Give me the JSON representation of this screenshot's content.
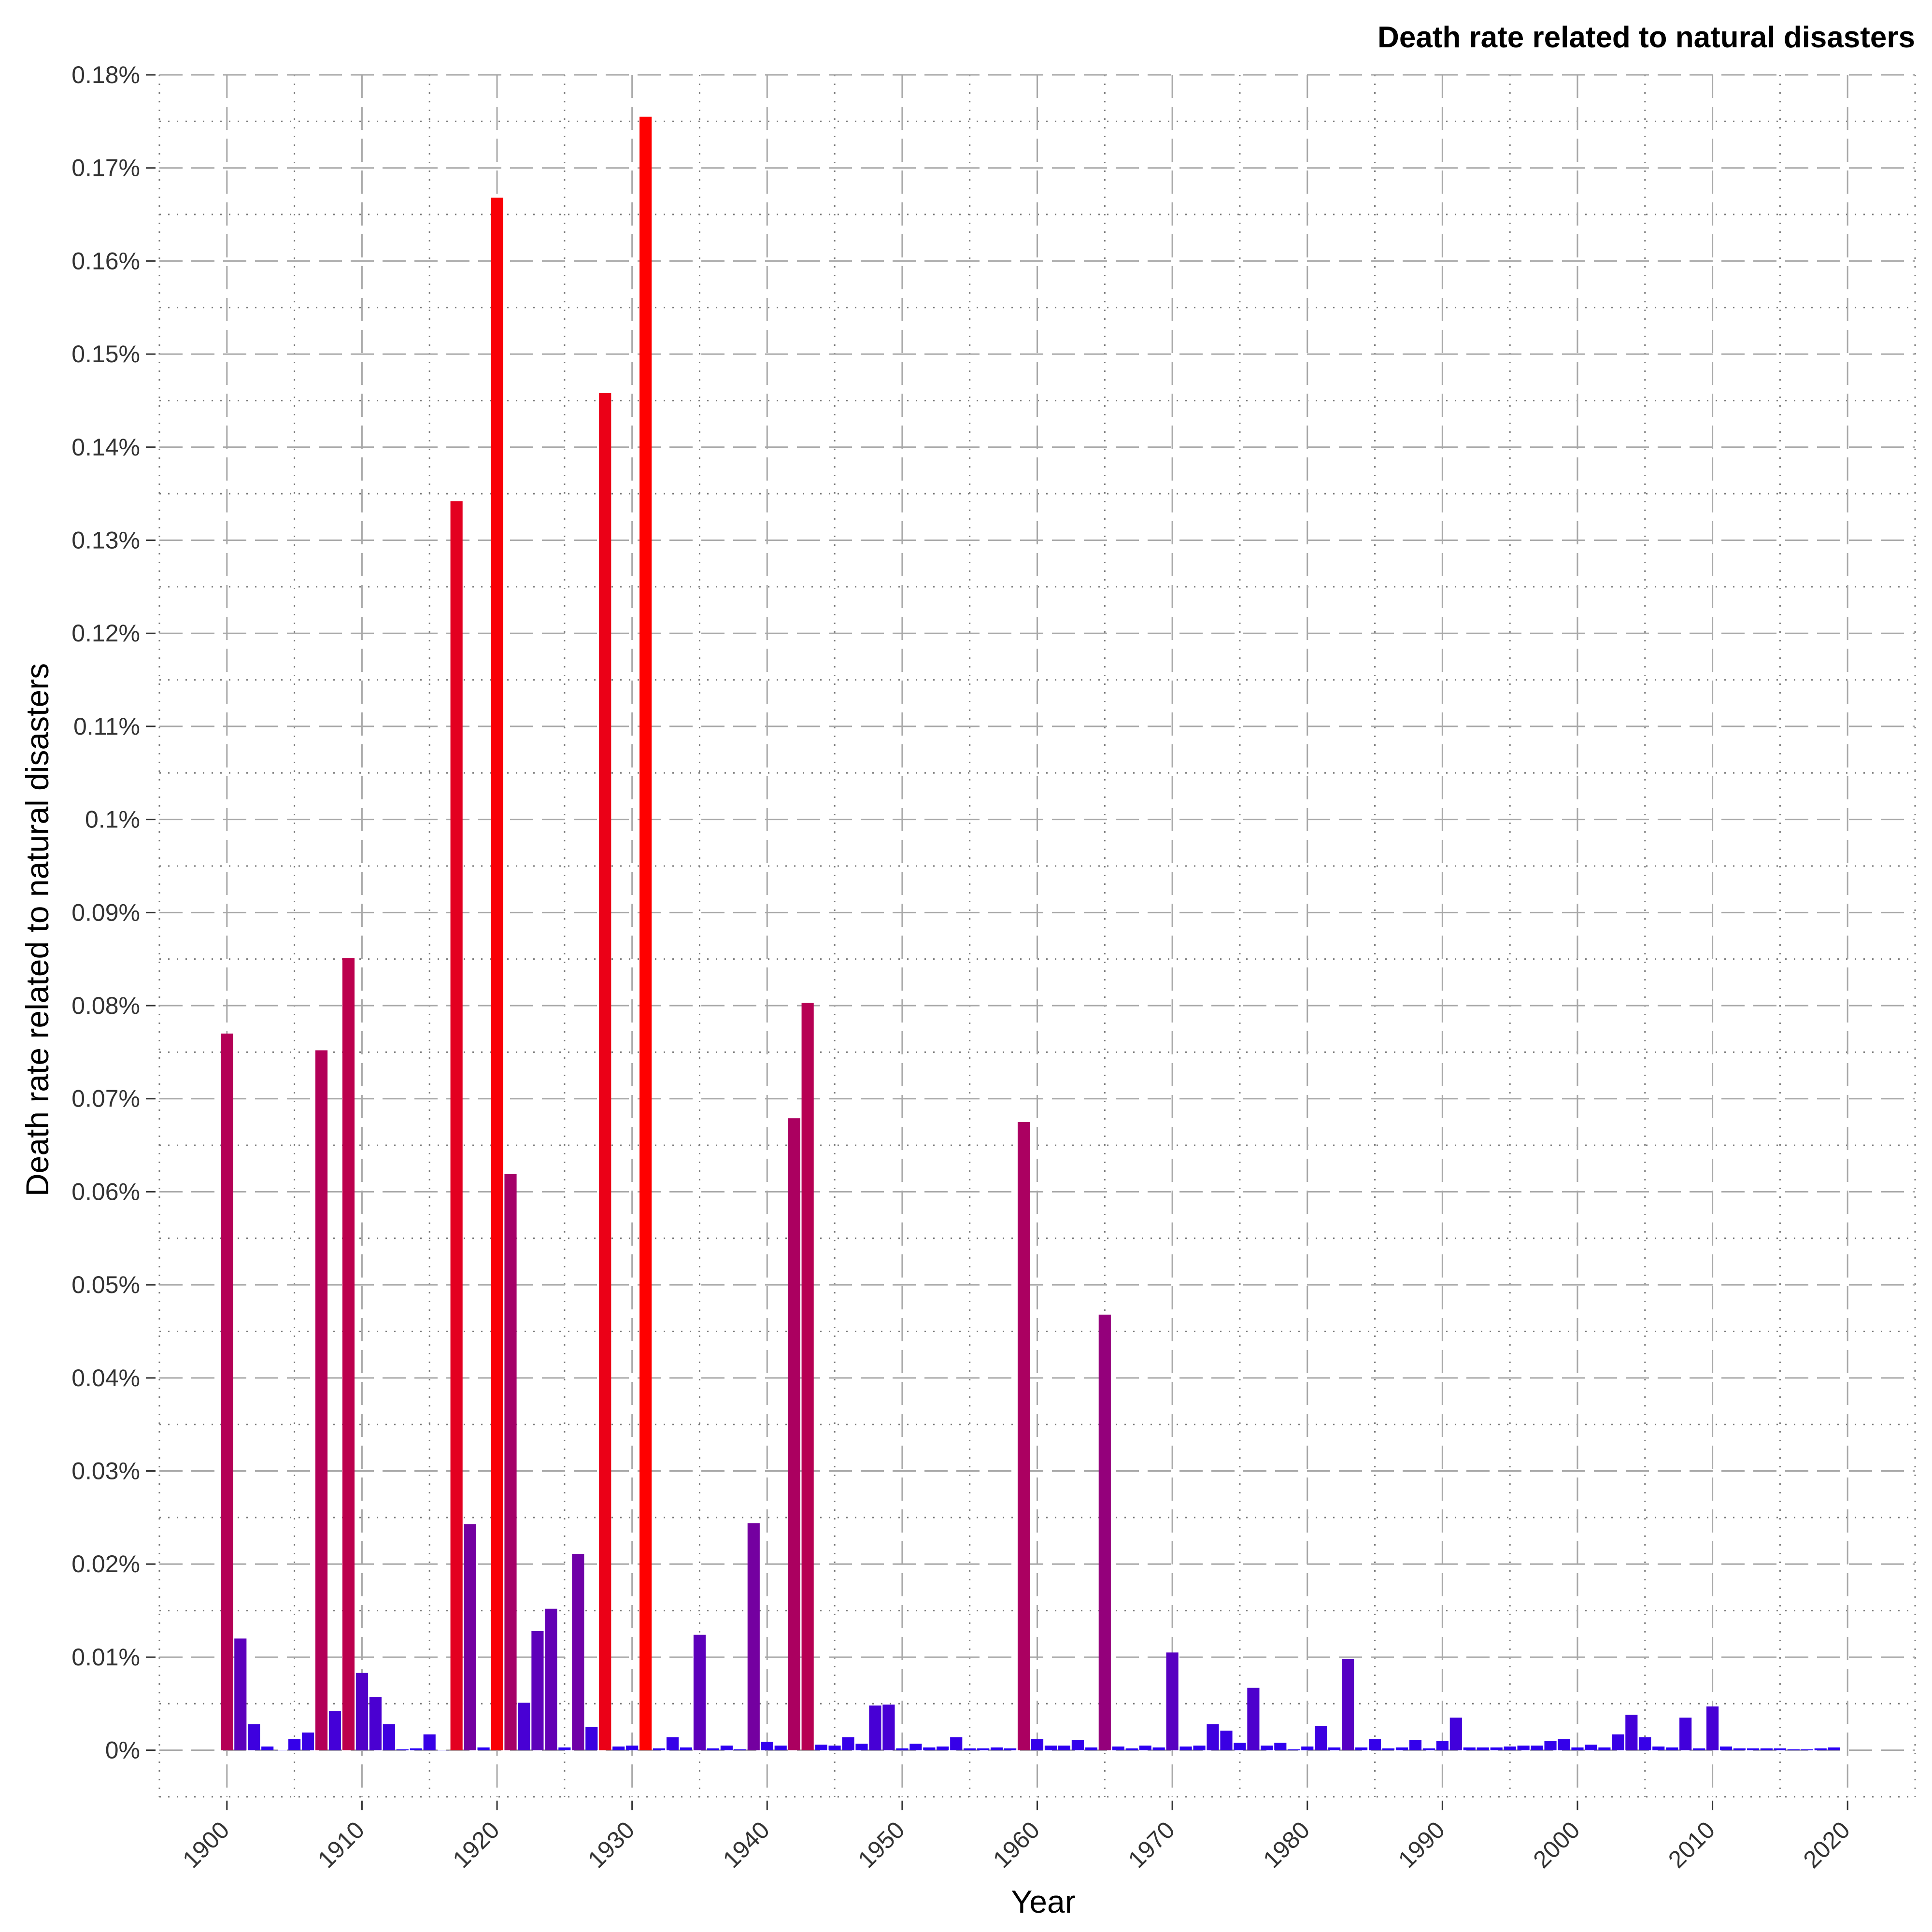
{
  "chart_data": {
    "type": "bar",
    "title": "Death rate related to natural disasters",
    "xlabel": "Year",
    "ylabel": "Death rate related to natural disasters",
    "xlim": [
      1895,
      2025
    ],
    "ylim": [
      -0.005,
      0.18
    ],
    "x_ticks": [
      1900,
      1910,
      1920,
      1930,
      1940,
      1950,
      1960,
      1970,
      1980,
      1990,
      2000,
      2010,
      2020
    ],
    "y_ticks": [
      0,
      0.01,
      0.02,
      0.03,
      0.04,
      0.05,
      0.06,
      0.07,
      0.08,
      0.09,
      0.1,
      0.11,
      0.12,
      0.13,
      0.14,
      0.15,
      0.16,
      0.17,
      0.18
    ],
    "y_tick_labels": [
      "0%",
      "0.01%",
      "0.02%",
      "0.03%",
      "0.04%",
      "0.05%",
      "0.06%",
      "0.07%",
      "0.08%",
      "0.09%",
      "0.1%",
      "0.11%",
      "0.12%",
      "0.13%",
      "0.14%",
      "0.15%",
      "0.16%",
      "0.17%",
      "0.18%"
    ],
    "grid": true,
    "legend": "none",
    "color_scale": {
      "low": "#2200ff",
      "high": "#ff0000"
    },
    "x": [
      1900,
      1901,
      1902,
      1903,
      1904,
      1905,
      1906,
      1907,
      1908,
      1909,
      1910,
      1911,
      1912,
      1913,
      1914,
      1915,
      1916,
      1917,
      1918,
      1919,
      1920,
      1921,
      1922,
      1923,
      1924,
      1925,
      1926,
      1927,
      1928,
      1929,
      1930,
      1931,
      1932,
      1933,
      1934,
      1935,
      1936,
      1937,
      1938,
      1939,
      1940,
      1941,
      1942,
      1943,
      1944,
      1945,
      1946,
      1947,
      1948,
      1949,
      1950,
      1951,
      1952,
      1953,
      1954,
      1955,
      1956,
      1957,
      1958,
      1959,
      1960,
      1961,
      1962,
      1963,
      1964,
      1965,
      1966,
      1967,
      1968,
      1969,
      1970,
      1971,
      1972,
      1973,
      1974,
      1975,
      1976,
      1977,
      1978,
      1979,
      1980,
      1981,
      1982,
      1983,
      1984,
      1985,
      1986,
      1987,
      1988,
      1989,
      1990,
      1991,
      1992,
      1993,
      1994,
      1995,
      1996,
      1997,
      1998,
      1999,
      2000,
      2001,
      2002,
      2003,
      2004,
      2005,
      2006,
      2007,
      2008,
      2009,
      2010,
      2011,
      2012,
      2013,
      2014,
      2015,
      2016,
      2017,
      2018,
      2019
    ],
    "values": [
      0.077,
      0.012,
      0.0028,
      0.0004,
      0,
      0.0012,
      0.0019,
      0.0752,
      0.0042,
      0.0851,
      0.0083,
      0.0057,
      0.0028,
      0.0001,
      0.0002,
      0.0017,
      0,
      0.1342,
      0.0243,
      0.0003,
      0.1668,
      0.0619,
      0.0051,
      0.0128,
      0.0152,
      0.0003,
      0.0211,
      0.0025,
      0.1458,
      0.0004,
      0.0005,
      0.1755,
      0.0002,
      0.0014,
      0.0003,
      0.0124,
      0.0002,
      0.0005,
      0.0001,
      0.0244,
      0.0009,
      0.0005,
      0.0679,
      0.0803,
      0.0006,
      0.0005,
      0.0014,
      0.0007,
      0.0048,
      0.0049,
      0.0002,
      0.0007,
      0.0003,
      0.0004,
      0.0014,
      0.0002,
      0.0002,
      0.0003,
      0.0002,
      0.0675,
      0.0012,
      0.0005,
      0.0005,
      0.0011,
      0.0003,
      0.0468,
      0.0004,
      0.0002,
      0.0005,
      0.0003,
      0.0105,
      0.0004,
      0.0005,
      0.0028,
      0.0021,
      0.0008,
      0.0067,
      0.0005,
      0.0008,
      0.0001,
      0.0004,
      0.0026,
      0.0003,
      0.0098,
      0.0003,
      0.0012,
      0.0002,
      0.0003,
      0.0011,
      0.0002,
      0.001,
      0.0035,
      0.0003,
      0.0003,
      0.0003,
      0.0004,
      0.0005,
      0.0005,
      0.001,
      0.0012,
      0.0003,
      0.0006,
      0.0003,
      0.0017,
      0.0038,
      0.0014,
      0.0004,
      0.0003,
      0.0035,
      0.0002,
      0.0047,
      0.0004,
      0.0002,
      0.0002,
      0.0002,
      0.0002,
      0.0001,
      0.0001,
      0.0002,
      0.0003
    ]
  }
}
